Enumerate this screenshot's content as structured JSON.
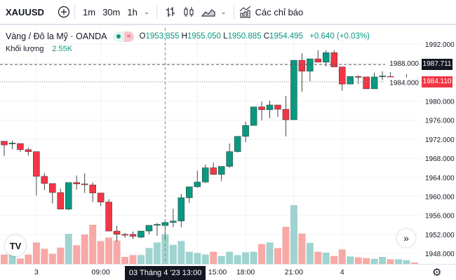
{
  "toolbar": {
    "symbol": "XAUUSD",
    "intervals": [
      "1m",
      "30m",
      "1h"
    ],
    "indicators_label": "Các chỉ báo"
  },
  "legend": {
    "title": "Vàng / Đô la Mỹ · OANDA",
    "approx_symbol": "≈",
    "o_label": "O",
    "o": "1953.855",
    "h_label": "H",
    "h": "1955.050",
    "l_label": "L",
    "l": "1950.885",
    "c_label": "C",
    "c": "1954.495",
    "change": "+0.640 (+0.03%)",
    "volume_label": "Khối lượng",
    "volume": "2.55K"
  },
  "crosshair": {
    "time_label": "03 Tháng 4 '23   13:00",
    "price_label": "1987.711",
    "price": 1987.711,
    "candle_index": 20
  },
  "current_price": {
    "label": "1984.110",
    "price": 1984.11
  },
  "colors": {
    "up": "#089981",
    "down": "#f23645",
    "vol_up": "#9fd3cf",
    "vol_down": "#f7a9a7",
    "grid": "#f0f3fa"
  },
  "chart_data": {
    "type": "candlestick",
    "price_ticks": [
      "1992.000",
      "1988.000",
      "1984.000",
      "1980.000",
      "1976.000",
      "1972.000",
      "1968.000",
      "1964.000",
      "1960.000",
      "1956.000",
      "1952.000",
      "1948.000"
    ],
    "ylim": [
      1948,
      1992
    ],
    "time_ticks": [
      {
        "label": "3",
        "index": 4
      },
      {
        "label": "09:00",
        "index": 12
      },
      {
        "label": "15:00",
        "index": 24
      },
      {
        "label": "18:00",
        "index": 30
      },
      {
        "label": "21:00",
        "index": 36
      },
      {
        "label": "4",
        "index": 42
      }
    ],
    "ohlc": [
      [
        1971.6,
        1971.6,
        1968.5,
        1970.8
      ],
      [
        1971.1,
        1971.7,
        1969.9,
        1971.2
      ],
      [
        1971.1,
        1971.1,
        1969.4,
        1969.8
      ],
      [
        1969.8,
        1970.2,
        1968.6,
        1969.4
      ],
      [
        1969.4,
        1969.4,
        1960.2,
        1964.2
      ],
      [
        1964.2,
        1964.9,
        1961.3,
        1962.7
      ],
      [
        1962.7,
        1962.7,
        1958.5,
        1960.8
      ],
      [
        1960.8,
        1961.6,
        1957.3,
        1957.3
      ],
      [
        1957.3,
        1962.9,
        1957.1,
        1962.9
      ],
      [
        1962.9,
        1964.4,
        1961.4,
        1962.6
      ],
      [
        1962.6,
        1964.8,
        1960.7,
        1962.5
      ],
      [
        1962.4,
        1962.9,
        1958.8,
        1960.7
      ],
      [
        1960.7,
        1960.7,
        1958.0,
        1958.8
      ],
      [
        1958.8,
        1959.4,
        1952.7,
        1952.7
      ],
      [
        1952.7,
        1953.8,
        1950.5,
        1952.0
      ],
      [
        1952.0,
        1952.3,
        1951.3,
        1951.9
      ],
      [
        1952.0,
        1952.6,
        1951.0,
        1951.6
      ],
      [
        1951.4,
        1952.7,
        1951.2,
        1952.7
      ],
      [
        1952.7,
        1953.9,
        1952.0,
        1953.9
      ],
      [
        1953.9,
        1954.4,
        1951.7,
        1954.1
      ],
      [
        1953.855,
        1955.05,
        1950.885,
        1954.495
      ],
      [
        1954.5,
        1957.4,
        1953.5,
        1954.8
      ],
      [
        1954.8,
        1960.5,
        1953.5,
        1959.7
      ],
      [
        1959.7,
        1962.0,
        1958.6,
        1962.0
      ],
      [
        1962.0,
        1965.4,
        1961.8,
        1963.0
      ],
      [
        1963.0,
        1966.7,
        1962.8,
        1966.0
      ],
      [
        1966.0,
        1967.1,
        1964.5,
        1964.6
      ],
      [
        1964.6,
        1966.3,
        1963.2,
        1966.3
      ],
      [
        1966.3,
        1971.1,
        1966.0,
        1969.4
      ],
      [
        1969.4,
        1972.6,
        1969.2,
        1972.6
      ],
      [
        1972.6,
        1975.7,
        1971.4,
        1974.9
      ],
      [
        1974.9,
        1978.8,
        1974.9,
        1978.8
      ],
      [
        1978.8,
        1979.9,
        1976.0,
        1978.2
      ],
      [
        1978.2,
        1980.1,
        1976.4,
        1979.2
      ],
      [
        1979.2,
        1979.2,
        1976.7,
        1978.3
      ],
      [
        1978.3,
        1981.1,
        1972.6,
        1976.1
      ],
      [
        1976.1,
        1988.6,
        1976.1,
        1988.6
      ],
      [
        1988.6,
        1990.1,
        1982.0,
        1986.3
      ],
      [
        1986.3,
        1988.9,
        1984.2,
        1988.9
      ],
      [
        1988.9,
        1990.7,
        1988.2,
        1988.2
      ],
      [
        1988.2,
        1990.7,
        1987.3,
        1990.2
      ],
      [
        1990.2,
        1990.7,
        1987.2,
        1987.2
      ],
      [
        1987.2,
        1987.2,
        1982.2,
        1983.6
      ],
      [
        1983.6,
        1985.2,
        1983.6,
        1985.2
      ],
      [
        1985.2,
        1985.4,
        1983.6,
        1985.1
      ],
      [
        1985.1,
        1985.1,
        1982.6,
        1982.6
      ],
      [
        1982.6,
        1986.0,
        1982.6,
        1985.1
      ],
      [
        1985.2,
        1986.3,
        1984.4,
        1985.3
      ],
      [
        1985.2,
        1986.1,
        1984.1,
        1984.1
      ],
      [
        1984.1,
        1984.5,
        1983.9,
        1984.5
      ],
      [
        1984.5,
        1985.7,
        1984.5,
        1984.8
      ],
      [
        1984.8,
        1984.8,
        1984.0,
        1984.11
      ]
    ],
    "volume_k": [
      0.8,
      0.8,
      0.46,
      0.8,
      1.84,
      1.3,
      0.86,
      1.4,
      2.58,
      1.6,
      2.52,
      3.36,
      1.96,
      2.26,
      2.0,
      0.6,
      0.76,
      0.76,
      1.36,
      1.84,
      2.55,
      1.64,
      1.96,
      1.04,
      0.94,
      0.8,
      1.04,
      0.68,
      1.04,
      0.76,
      1.0,
      1.04,
      1.7,
      1.84,
      1.36,
      3.18,
      5.04,
      2.6,
      1.8,
      1.04,
      0.96,
      0.68,
      1.24,
      0.64,
      0.56,
      0.5,
      0.44,
      0.6,
      0.4,
      0.4,
      0.32,
      0.12
    ]
  }
}
